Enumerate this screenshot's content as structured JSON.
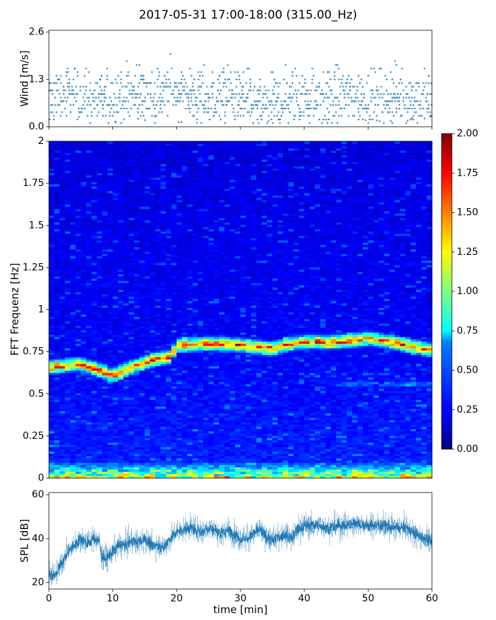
{
  "title": "2017-05-31 17:00-18:00 (315.00_Hz)",
  "chart_data": [
    {
      "type": "scatter",
      "panel": "wind",
      "ylabel": "Wind [m/s]",
      "xlim": [
        0,
        60
      ],
      "ylim": [
        0,
        2.65
      ],
      "yticks": [
        0.0,
        1.3,
        2.6
      ],
      "ytick_labels": [
        "0.0",
        "1.3",
        "2.6"
      ],
      "marker": "+",
      "color": "#1f77b4",
      "profile": [
        [
          0,
          0.75
        ],
        [
          3,
          0.95
        ],
        [
          5,
          0.85
        ],
        [
          8,
          0.7
        ],
        [
          10,
          0.8
        ],
        [
          13,
          0.9
        ],
        [
          15,
          0.95
        ],
        [
          17,
          0.85
        ],
        [
          20,
          1.0
        ],
        [
          23,
          0.85
        ],
        [
          25,
          0.8
        ],
        [
          28,
          0.9
        ],
        [
          31,
          0.7
        ],
        [
          33,
          0.55
        ],
        [
          35,
          0.6
        ],
        [
          38,
          0.8
        ],
        [
          40,
          0.85
        ],
        [
          43,
          0.7
        ],
        [
          46,
          0.9
        ],
        [
          49,
          0.8
        ],
        [
          52,
          0.7
        ],
        [
          55,
          0.85
        ],
        [
          58,
          0.7
        ],
        [
          60,
          0.75
        ]
      ]
    },
    {
      "type": "heatmap",
      "panel": "spectrogram",
      "ylabel": "FFT Frequenz [Hz]",
      "xlim": [
        0,
        60
      ],
      "ylim": [
        0,
        2
      ],
      "yticks": [
        0,
        0.25,
        0.5,
        0.75,
        1,
        1.25,
        1.5,
        1.75,
        2
      ],
      "ytick_labels": [
        "0",
        "0.25",
        "0.5",
        "0.75",
        "1",
        "1.25",
        "1.5",
        "1.75",
        "2"
      ],
      "colormap": "jet",
      "colorbar_range": [
        0.0,
        2.0
      ],
      "colorbar_ticks": [
        "0.00",
        "0.25",
        "0.50",
        "0.75",
        "1.00",
        "1.25",
        "1.50",
        "1.75",
        "2.00"
      ],
      "dominant_band": [
        [
          0,
          0.66
        ],
        [
          5,
          0.68
        ],
        [
          8,
          0.64
        ],
        [
          10,
          0.61
        ],
        [
          13,
          0.66
        ],
        [
          16,
          0.7
        ],
        [
          19,
          0.72
        ],
        [
          20,
          0.79
        ],
        [
          25,
          0.8
        ],
        [
          30,
          0.79
        ],
        [
          35,
          0.77
        ],
        [
          38,
          0.8
        ],
        [
          40,
          0.81
        ],
        [
          45,
          0.81
        ],
        [
          50,
          0.83
        ],
        [
          55,
          0.8
        ],
        [
          60,
          0.76
        ]
      ]
    },
    {
      "type": "line",
      "panel": "spl",
      "ylabel": "SPL [dB]",
      "xlabel": "time [min]",
      "xlim": [
        0,
        60
      ],
      "ylim": [
        17,
        61
      ],
      "yticks": [
        20,
        40,
        60
      ],
      "xticks": [
        0,
        10,
        20,
        30,
        40,
        50,
        60
      ],
      "color": "#1f77b4",
      "profile": [
        [
          0,
          24
        ],
        [
          1,
          23
        ],
        [
          2,
          29
        ],
        [
          3,
          34
        ],
        [
          4,
          37
        ],
        [
          5,
          40
        ],
        [
          6,
          38
        ],
        [
          7,
          40
        ],
        [
          7.9,
          39
        ],
        [
          8.2,
          32
        ],
        [
          9,
          31
        ],
        [
          10,
          34
        ],
        [
          11,
          37
        ],
        [
          12,
          37
        ],
        [
          13,
          39
        ],
        [
          14,
          38
        ],
        [
          15,
          40
        ],
        [
          16,
          37
        ],
        [
          17,
          37
        ],
        [
          18,
          36
        ],
        [
          19,
          40
        ],
        [
          20,
          43
        ],
        [
          21,
          44
        ],
        [
          22,
          45
        ],
        [
          23,
          44
        ],
        [
          24,
          43
        ],
        [
          25,
          45
        ],
        [
          26,
          44
        ],
        [
          27,
          42
        ],
        [
          28,
          44
        ],
        [
          29,
          42
        ],
        [
          30,
          40
        ],
        [
          31,
          40
        ],
        [
          32,
          42
        ],
        [
          33,
          44
        ],
        [
          34,
          41
        ],
        [
          35,
          39
        ],
        [
          36,
          41
        ],
        [
          37,
          42
        ],
        [
          38,
          40
        ],
        [
          39,
          44
        ],
        [
          40,
          46
        ],
        [
          42,
          46
        ],
        [
          44,
          45
        ],
        [
          46,
          46
        ],
        [
          48,
          47
        ],
        [
          50,
          46
        ],
        [
          52,
          46
        ],
        [
          54,
          45
        ],
        [
          56,
          45
        ],
        [
          58,
          41
        ],
        [
          59,
          40
        ],
        [
          60,
          38
        ]
      ],
      "spread": 3
    }
  ]
}
